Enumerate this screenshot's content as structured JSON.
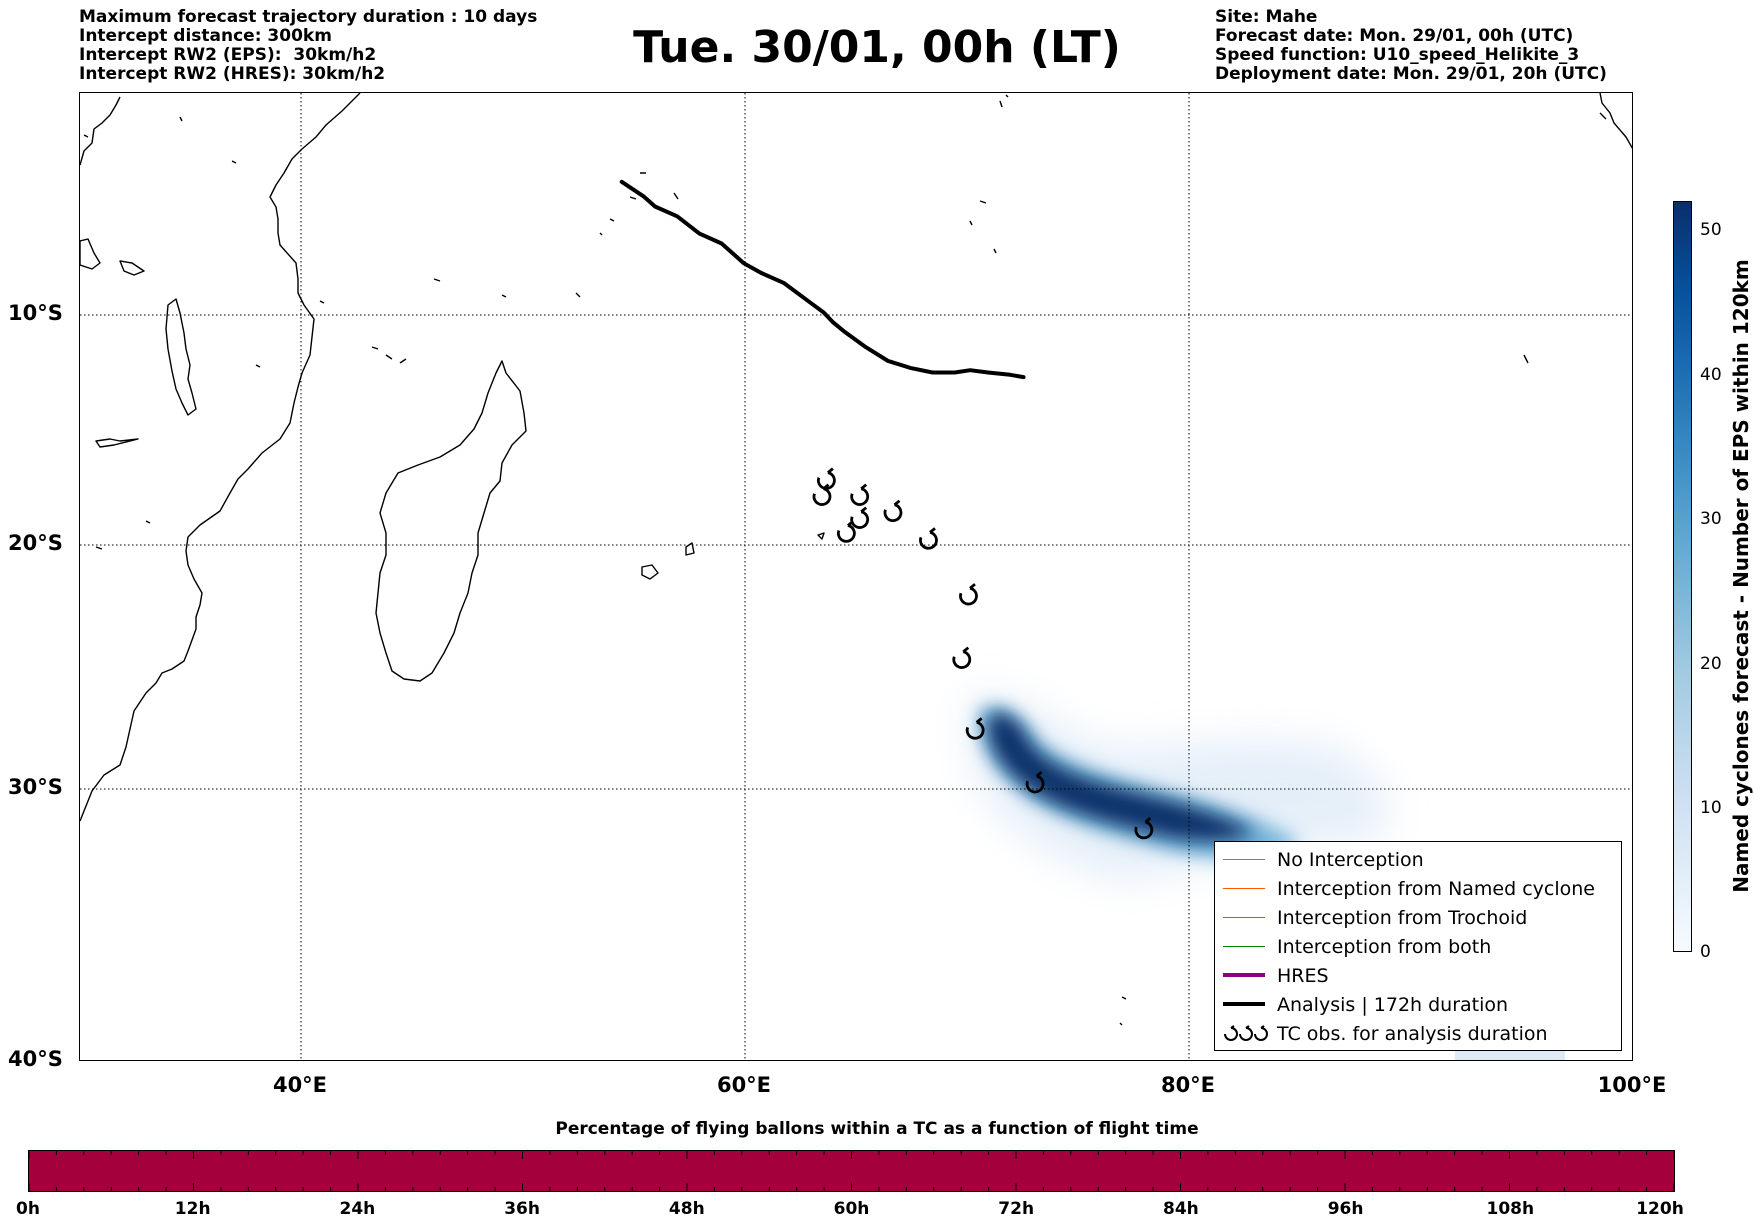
{
  "header_left": {
    "line1": "Maximum forecast trajectory duration : 10 days",
    "line2": "Intercept distance: 300km",
    "line3": "Intercept RW2 (EPS):  30km/h2",
    "line4": "Intercept RW2 (HRES): 30km/h2"
  },
  "title": "Tue. 30/01, 00h (LT)",
  "header_right": {
    "line1": "Site: Mahe",
    "line2": "Forecast date: Mon. 29/01, 00h (UTC)",
    "line3": "Speed function: U10_speed_Helikite_3",
    "line4": "Deployment date: Mon. 29/01, 20h (UTC)"
  },
  "map": {
    "lat_labels": [
      "10°S",
      "20°S",
      "30°S",
      "40°S"
    ],
    "lon_labels": [
      "40°E",
      "60°E",
      "80°E",
      "100°E"
    ],
    "analysis_track": [
      [
        55.5,
        -4.6
      ],
      [
        56.5,
        -5.2
      ],
      [
        57.0,
        -5.6
      ],
      [
        58.0,
        -6.0
      ],
      [
        59.0,
        -6.7
      ],
      [
        60.0,
        -7.1
      ],
      [
        61.0,
        -7.9
      ],
      [
        61.8,
        -8.3
      ],
      [
        62.8,
        -8.7
      ],
      [
        64.0,
        -9.5
      ],
      [
        64.6,
        -9.9
      ],
      [
        65.0,
        -10.3
      ],
      [
        65.5,
        -10.7
      ],
      [
        66.5,
        -11.4
      ],
      [
        67.5,
        -12.0
      ],
      [
        68.5,
        -12.3
      ],
      [
        69.5,
        -12.5
      ],
      [
        70.5,
        -12.5
      ],
      [
        71.2,
        -12.4
      ],
      [
        72.0,
        -12.5
      ],
      [
        73.0,
        -12.6
      ],
      [
        73.6,
        -12.7
      ]
    ],
    "tc_obs": [
      [
        64.7,
        -17.2
      ],
      [
        64.5,
        -17.9
      ],
      [
        66.2,
        -17.9
      ],
      [
        65.6,
        -19.5
      ],
      [
        66.2,
        -18.9
      ],
      [
        67.7,
        -18.6
      ],
      [
        69.3,
        -19.8
      ],
      [
        71.1,
        -22.1
      ],
      [
        70.8,
        -24.7
      ],
      [
        71.4,
        -27.6
      ],
      [
        74.1,
        -29.8
      ],
      [
        79.0,
        -31.5
      ]
    ],
    "eps_density_path": [
      [
        72.8,
        -29.3
      ],
      [
        71.5,
        -27.8
      ],
      [
        73.0,
        -29.0
      ],
      [
        75.0,
        -29.8
      ],
      [
        77.0,
        -30.5
      ],
      [
        79.0,
        -31.3
      ],
      [
        81.0,
        -32.2
      ],
      [
        83.0,
        -33.0
      ]
    ]
  },
  "legend": {
    "items": [
      {
        "label": "No Interception",
        "color": "#808080"
      },
      {
        "label": "Interception from Named cyclone",
        "color": "#ff5a00"
      },
      {
        "label": "Interception from Trochoid",
        "color": "#808000"
      },
      {
        "label": "Interception from both",
        "color": "#008000"
      },
      {
        "label": "HRES",
        "color": "#8b008b"
      },
      {
        "label": "Analysis | 172h duration",
        "color": "#000000"
      },
      {
        "label": "TC obs. for analysis duration",
        "color": "#000000"
      }
    ]
  },
  "colorbar": {
    "title": "Named cyclones forecast - Number of EPS within 120km",
    "ticks": [
      "0",
      "10",
      "20",
      "30",
      "40",
      "50"
    ],
    "range": [
      0,
      52
    ]
  },
  "bottom": {
    "title": "Percentage of flying ballons within a TC as a function of flight time",
    "bar_color": "#a3003c",
    "ticks": [
      "0h",
      "12h",
      "24h",
      "36h",
      "48h",
      "60h",
      "72h",
      "84h",
      "96h",
      "108h",
      "120h"
    ]
  }
}
